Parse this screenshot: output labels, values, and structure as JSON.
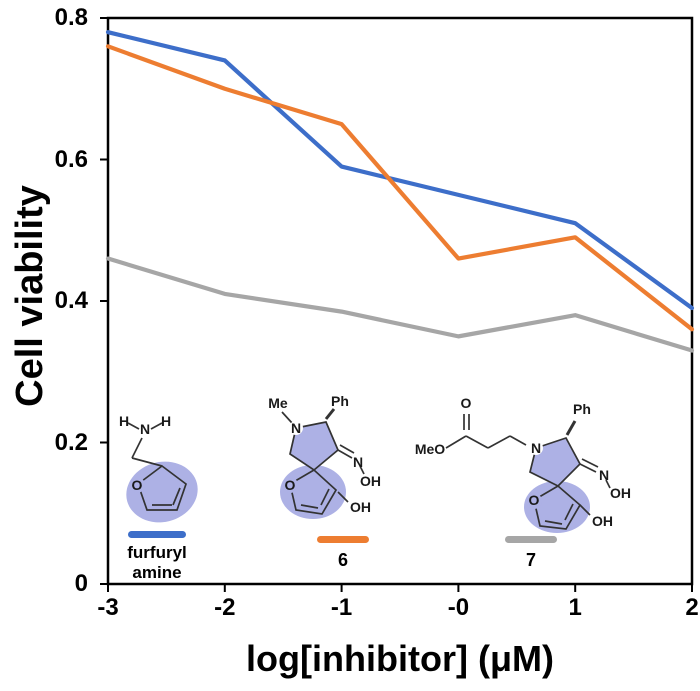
{
  "chart_data": {
    "type": "line",
    "title": "",
    "xlabel": "log[inhibitor] (μM)",
    "ylabel": "Cell viability",
    "x": [
      -3,
      -2,
      -1,
      0,
      1,
      2
    ],
    "x_tick_labels": [
      "-3",
      "-2",
      "-1",
      "-0",
      "1",
      "2"
    ],
    "y_ticks": [
      0,
      0.2,
      0.4,
      0.6,
      0.8
    ],
    "y_tick_labels": [
      "0",
      "0.2",
      "0.4",
      "0.6",
      "0.8"
    ],
    "xlim": [
      -3,
      2
    ],
    "ylim": [
      0,
      0.8
    ],
    "grid": false,
    "legend_position": "inside-bottom",
    "series": [
      {
        "name": "furfuryl amine",
        "color": "#3D6EC9",
        "values": [
          0.78,
          0.74,
          0.59,
          0.55,
          0.51,
          0.39
        ]
      },
      {
        "name": "6",
        "color": "#ED7D31",
        "values": [
          0.76,
          0.7,
          0.65,
          0.46,
          0.49,
          0.36
        ]
      },
      {
        "name": "7",
        "color": "#A6A6A6",
        "values": [
          0.46,
          0.41,
          0.385,
          0.35,
          0.38,
          0.33
        ]
      }
    ]
  },
  "legend": {
    "furfuryl_line1": "furfuryl",
    "furfuryl_line2": "amine",
    "compound6_label": "6",
    "compound7_label": "7"
  },
  "structures": {
    "highlight_color": "#ADB1E5",
    "furfuryl_amine": {
      "h_left": "H",
      "n": "N",
      "h_right": "H",
      "o": "O"
    },
    "compound6": {
      "me": "Me",
      "ph": "Ph",
      "ring_n": "N",
      "oxime_n": "N",
      "oxime_oh": "OH",
      "ring_o": "O",
      "oh": "OH"
    },
    "compound7": {
      "meo": "MeO",
      "carbonyl_o": "O",
      "ph": "Ph",
      "ring_n": "N",
      "oxime_n": "N",
      "oxime_oh": "OH",
      "ring_o": "O",
      "oh": "OH"
    }
  }
}
